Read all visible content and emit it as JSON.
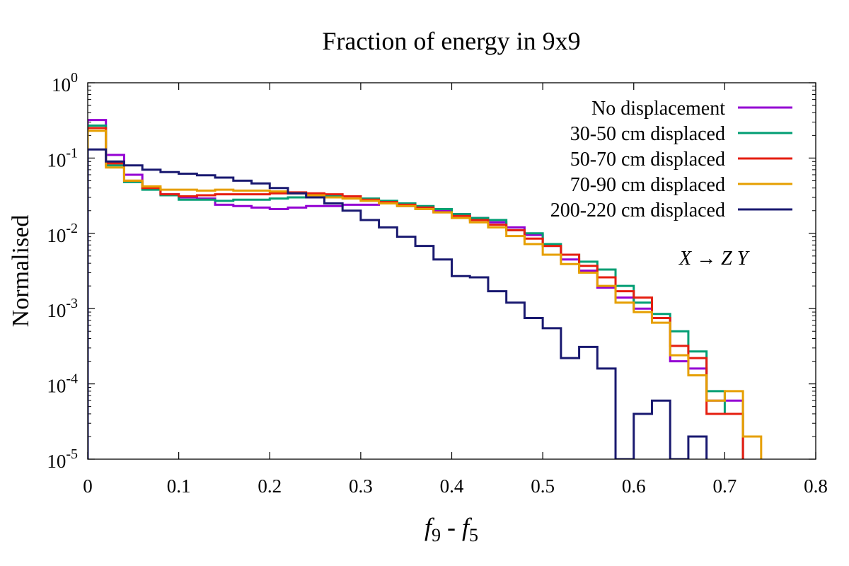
{
  "chart_data": {
    "type": "line",
    "style": "step-histogram",
    "title": "Fraction of energy in 9x9",
    "xlabel": {
      "f": "f",
      "a": "9",
      "minus": " - ",
      "f2": "f",
      "b": "5"
    },
    "ylabel": "Normalised",
    "x_range": [
      0,
      0.8
    ],
    "y_range": [
      1e-05,
      1
    ],
    "y_scale": "log",
    "x_ticks": [
      {
        "v": 0,
        "label": "0"
      },
      {
        "v": 0.1,
        "label": "0.1"
      },
      {
        "v": 0.2,
        "label": "0.2"
      },
      {
        "v": 0.3,
        "label": "0.3"
      },
      {
        "v": 0.4,
        "label": "0.4"
      },
      {
        "v": 0.5,
        "label": "0.5"
      },
      {
        "v": 0.6,
        "label": "0.6"
      },
      {
        "v": 0.7,
        "label": "0.7"
      },
      {
        "v": 0.8,
        "label": "0.8"
      }
    ],
    "y_ticks": [
      {
        "v": 1,
        "base": "10",
        "exp": "0"
      },
      {
        "v": 0.1,
        "base": "10",
        "exp": "-1"
      },
      {
        "v": 0.01,
        "base": "10",
        "exp": "-2"
      },
      {
        "v": 0.001,
        "base": "10",
        "exp": "-3"
      },
      {
        "v": 0.0001,
        "base": "10",
        "exp": "-4"
      },
      {
        "v": 1e-05,
        "base": "10",
        "exp": "-5"
      }
    ],
    "bin_width": 0.02,
    "annotation": {
      "X": "X",
      "arrow": "→",
      "Z": "Z",
      "Y": "Y"
    },
    "legend_position": "top-right",
    "series": [
      {
        "name": "No displacement",
        "color": "#9400d3",
        "values": [
          0.32,
          0.11,
          0.06,
          0.04,
          0.033,
          0.03,
          0.029,
          0.024,
          0.023,
          0.022,
          0.021,
          0.022,
          0.023,
          0.023,
          0.024,
          0.024,
          0.025,
          0.023,
          0.021,
          0.02,
          0.018,
          0.016,
          0.014,
          0.012,
          0.0095,
          0.0068,
          0.0045,
          0.0032,
          0.0019,
          0.0014,
          0.001,
          0.00075,
          0.0002,
          0.00016,
          6e-05,
          6e-05
        ]
      },
      {
        "name": "30-50 cm displaced",
        "color": "#009e73",
        "values": [
          0.27,
          0.08,
          0.048,
          0.038,
          0.032,
          0.028,
          0.028,
          0.027,
          0.028,
          0.028,
          0.029,
          0.03,
          0.031,
          0.032,
          0.031,
          0.029,
          0.027,
          0.025,
          0.023,
          0.021,
          0.018,
          0.016,
          0.015,
          0.011,
          0.01,
          0.0072,
          0.0052,
          0.0042,
          0.0033,
          0.002,
          0.0012,
          0.00085,
          0.0005,
          0.00027,
          8e-05,
          4e-05
        ]
      },
      {
        "name": "50-70 cm displaced",
        "color": "#e51e10",
        "values": [
          0.25,
          0.085,
          0.05,
          0.04,
          0.033,
          0.031,
          0.032,
          0.033,
          0.033,
          0.033,
          0.034,
          0.035,
          0.034,
          0.033,
          0.031,
          0.028,
          0.026,
          0.024,
          0.022,
          0.019,
          0.017,
          0.015,
          0.013,
          0.011,
          0.0085,
          0.0068,
          0.0052,
          0.0037,
          0.0026,
          0.0017,
          0.0014,
          0.00075,
          0.00032,
          0.00022,
          4e-05,
          4e-05
        ]
      },
      {
        "name": "70-90 cm displaced",
        "color": "#e69f00",
        "values": [
          0.23,
          0.075,
          0.05,
          0.042,
          0.038,
          0.038,
          0.037,
          0.038,
          0.037,
          0.037,
          0.036,
          0.034,
          0.032,
          0.03,
          0.029,
          0.027,
          0.025,
          0.023,
          0.021,
          0.019,
          0.016,
          0.014,
          0.012,
          0.0092,
          0.0072,
          0.0052,
          0.0039,
          0.003,
          0.002,
          0.0012,
          0.0009,
          0.00065,
          0.00024,
          0.00013,
          6e-05,
          8e-05,
          2e-05
        ]
      },
      {
        "name": "200-220 cm displaced",
        "color": "#191970",
        "values": [
          0.13,
          0.09,
          0.08,
          0.07,
          0.065,
          0.062,
          0.059,
          0.055,
          0.05,
          0.046,
          0.04,
          0.034,
          0.03,
          0.025,
          0.02,
          0.015,
          0.012,
          0.009,
          0.0068,
          0.0045,
          0.0027,
          0.0026,
          0.0017,
          0.0012,
          0.00075,
          0.00055,
          0.00022,
          0.00031,
          0.00016,
          1e-05,
          4e-05,
          6e-05,
          1e-05,
          2e-05
        ]
      }
    ]
  }
}
